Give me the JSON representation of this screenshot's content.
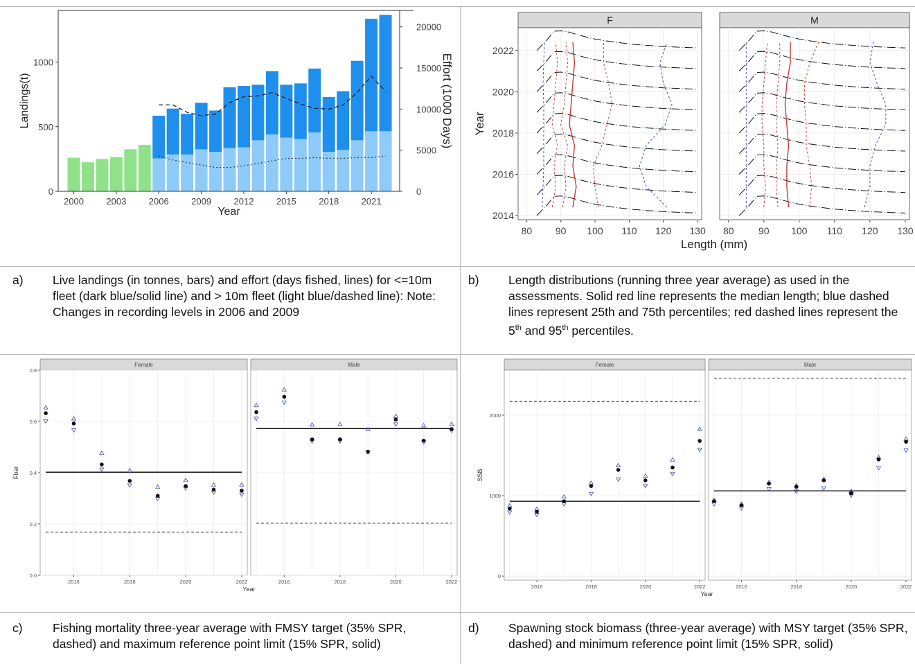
{
  "captions": {
    "a": {
      "label": "a)",
      "text": "Live landings (in tonnes, bars) and effort (days fished, lines) for <=10m fleet (dark blue/solid line) and > 10m fleet (light blue/dashed line): Note: Changes in recording levels in 2006 and 2009"
    },
    "b": {
      "label": "b)",
      "text_main": "Length distributions (running three year average) as used in the assessments. Solid red line represents the median length; blue dashed lines represent 25th and 75th percentiles; red dashed lines represent the 5",
      "sup1": "th",
      "text_mid": " and 95",
      "sup2": "th",
      "text_end": " percentiles."
    },
    "c": {
      "label": "c)",
      "text": "Fishing mortality three-year average with FMSY target (35% SPR, dashed) and maximum reference point limit (15% SPR, solid)"
    },
    "d": {
      "label": "d)",
      "text": "Spawning stock biomass (three-year average) with MSY target (35% SPR, dashed) and minimum reference point limit (15% SPR, solid)"
    }
  },
  "colors": {
    "green": "#90e28a",
    "dark_blue": "#1f8fee",
    "light_blue": "#8fcbf9",
    "red": "#c43a3a",
    "blue_dash": "#3b4fb0",
    "black": "#111111",
    "panel_strip": "#d9d9d9",
    "grid": "#ececec"
  },
  "chart_data": [
    {
      "id": "a",
      "type": "bar",
      "xlabel": "Year",
      "ylabel": "Landings(t)",
      "y2label": "Effort (1000 Days)",
      "ylim": [
        0,
        1400
      ],
      "y2lim": [
        0,
        22000
      ],
      "yticks": [
        0,
        500,
        1000
      ],
      "y2ticks": [
        0,
        5000,
        10000,
        15000,
        20000
      ],
      "xticks": [
        2000,
        2003,
        2006,
        2009,
        2012,
        2015,
        2018,
        2021
      ],
      "grid": false,
      "years": [
        2000,
        2001,
        2002,
        2003,
        2004,
        2005,
        2006,
        2007,
        2008,
        2009,
        2010,
        2011,
        2012,
        2013,
        2014,
        2015,
        2016,
        2017,
        2018,
        2019,
        2020,
        2021,
        2022
      ],
      "series": [
        {
          "values": [
            260,
            225,
            250,
            265,
            325,
            360,
            0,
            0,
            0,
            0,
            0,
            0,
            0,
            0,
            0,
            0,
            0,
            0,
            0,
            0,
            0,
            0,
            0
          ],
          "color": "green"
        },
        {
          "values": [
            0,
            0,
            0,
            0,
            0,
            0,
            255,
            285,
            285,
            325,
            305,
            335,
            340,
            395,
            440,
            415,
            405,
            455,
            305,
            320,
            395,
            465,
            465
          ],
          "color": "light_blue"
        },
        {
          "values": [
            0,
            0,
            0,
            0,
            0,
            0,
            330,
            355,
            315,
            360,
            320,
            470,
            475,
            430,
            490,
            410,
            430,
            495,
            425,
            455,
            615,
            870,
            900
          ],
          "color": "dark_blue"
        }
      ],
      "lines": [
        {
          "style": "dashed",
          "x": [
            2006,
            2007,
            2008,
            2009,
            2010,
            2011,
            2012,
            2013,
            2014,
            2015,
            2016,
            2017,
            2018,
            2019,
            2020,
            2021,
            2022
          ],
          "y": [
            10500,
            10500,
            9600,
            9200,
            9400,
            10800,
            11500,
            11600,
            12000,
            11300,
            10600,
            10100,
            10000,
            10500,
            12000,
            14000,
            12200
          ]
        },
        {
          "style": "dotted",
          "x": [
            2006,
            2007,
            2008,
            2009,
            2010,
            2011,
            2012,
            2013,
            2014,
            2015,
            2016,
            2017,
            2018,
            2019,
            2020,
            2021,
            2022
          ],
          "y": [
            4300,
            3800,
            3500,
            3200,
            2900,
            2900,
            3100,
            3400,
            3700,
            4000,
            4000,
            4100,
            4000,
            4000,
            4100,
            4100,
            4300
          ]
        }
      ]
    },
    {
      "id": "b",
      "type": "line",
      "xlabel": "Length (mm)",
      "ylabel": "Year",
      "xlim": [
        80,
        130
      ],
      "xticks": [
        80,
        90,
        100,
        110,
        120,
        130
      ],
      "ylim": [
        2013.8,
        2023.1
      ],
      "yticks": [
        2014,
        2016,
        2018,
        2020,
        2022
      ],
      "grid": true,
      "years": [
        2014,
        2015,
        2016,
        2017,
        2018,
        2019,
        2020,
        2021,
        2022
      ],
      "panels": [
        {
          "name": "F",
          "distribution": {
            "length": [
              83,
              86,
              88,
              90,
              92,
              94,
              96,
              98,
              100,
              103,
              106,
              110,
              115,
              120,
              125,
              130
            ],
            "value": [
              0,
              0.55,
              0.98,
              1,
              0.95,
              0.85,
              0.75,
              0.66,
              0.58,
              0.49,
              0.42,
              0.33,
              0.26,
              0.2,
              0.16,
              0.13
            ]
          },
          "p5": [
            87.5,
            88.5,
            88.0,
            89.0,
            87.5,
            88.0,
            88.5,
            89.0,
            88.5
          ],
          "p25": [
            90.5,
            91.5,
            91.0,
            92.0,
            90.0,
            91.0,
            91.5,
            92.0,
            91.5
          ],
          "p50": [
            93.5,
            94.5,
            93.5,
            94.0,
            92.5,
            93.0,
            93.5,
            94.0,
            93.5
          ],
          "p75": [
            101.0,
            100.0,
            99.5,
            102.0,
            103.5,
            105.0,
            104.0,
            102.5,
            102.5
          ],
          "p95": [
            121.0,
            115.0,
            113.0,
            115.0,
            120.5,
            122.5,
            120.0,
            119.0,
            121.0
          ],
          "p_low": [
            84.5,
            84.8,
            85.0,
            85.0,
            85.0,
            85.0,
            84.8,
            85.0,
            85.2
          ]
        },
        {
          "name": "M",
          "distribution": {
            "length": [
              83,
              86,
              88,
              90,
              92,
              94,
              96,
              98,
              100,
              103,
              106,
              110,
              115,
              120,
              125,
              130
            ],
            "value": [
              0,
              0.55,
              0.98,
              1,
              0.95,
              0.85,
              0.75,
              0.66,
              0.58,
              0.49,
              0.42,
              0.33,
              0.26,
              0.2,
              0.16,
              0.13
            ]
          },
          "p5": [
            90.0,
            90.5,
            90.0,
            90.0,
            89.5,
            89.5,
            90.0,
            90.5,
            91.0
          ],
          "p25": [
            94.0,
            93.5,
            93.5,
            94.0,
            93.5,
            93.5,
            94.0,
            94.5,
            94.5
          ],
          "p50": [
            97.0,
            96.5,
            96.5,
            97.0,
            96.5,
            96.0,
            96.5,
            97.5,
            97.5
          ],
          "p75": [
            103.0,
            103.5,
            103.0,
            102.0,
            102.0,
            101.5,
            101.5,
            103.0,
            105.5
          ],
          "p95": [
            118.5,
            120.0,
            120.0,
            121.5,
            124.5,
            124.5,
            122.0,
            120.0,
            121.0
          ],
          "p_low": [
            85.0,
            85.0,
            85.0,
            85.0,
            85.0,
            85.0,
            85.0,
            85.0,
            85.0
          ]
        }
      ]
    },
    {
      "id": "c",
      "type": "scatter",
      "xlabel": "Year",
      "ylabel": "Fbar",
      "ylim": [
        0.0,
        0.8
      ],
      "yticks": [
        0.0,
        0.2,
        0.4,
        0.6,
        0.8
      ],
      "xticks": [
        2016,
        2018,
        2020,
        2022
      ],
      "grid": true,
      "panels": [
        {
          "name": "Female",
          "x": [
            2015,
            2016,
            2017,
            2018,
            2019,
            2020,
            2021,
            2022
          ],
          "y": [
            0.632,
            0.592,
            0.432,
            0.368,
            0.31,
            0.348,
            0.334,
            0.33
          ],
          "upper": [
            0.655,
            0.612,
            0.478,
            0.41,
            0.345,
            0.372,
            0.354,
            0.354
          ],
          "lower": [
            0.6,
            0.565,
            0.412,
            0.35,
            0.298,
            0.338,
            0.322,
            0.314
          ],
          "ref_solid": 0.402,
          "ref_dashed": 0.168
        },
        {
          "name": "Male",
          "x": [
            2015,
            2016,
            2017,
            2018,
            2019,
            2020,
            2021,
            2022
          ],
          "y": [
            0.636,
            0.696,
            0.53,
            0.53,
            0.482,
            0.607,
            0.525,
            0.57
          ],
          "upper": [
            0.664,
            0.725,
            0.588,
            0.59,
            0.57,
            0.622,
            0.585,
            0.59
          ],
          "lower": [
            0.61,
            0.673,
            0.522,
            0.522,
            0.478,
            0.588,
            0.518,
            0.563
          ],
          "ref_solid": 0.572,
          "ref_dashed": 0.203
        }
      ]
    },
    {
      "id": "d",
      "type": "scatter",
      "xlabel": "Year",
      "ylabel": "SSB",
      "ylim": [
        -50,
        2560
      ],
      "yticks": [
        0,
        1000,
        2000
      ],
      "xticks": [
        2016,
        2018,
        2020,
        2022
      ],
      "grid": true,
      "panels": [
        {
          "name": "Female",
          "x": [
            2015,
            2016,
            2017,
            2018,
            2019,
            2020,
            2021,
            2022
          ],
          "y": [
            840,
            800,
            930,
            1120,
            1320,
            1190,
            1350,
            1680
          ],
          "upper": [
            880,
            840,
            990,
            1160,
            1380,
            1250,
            1450,
            1830
          ],
          "lower": [
            790,
            760,
            890,
            1020,
            1200,
            1120,
            1270,
            1570
          ],
          "ref_solid": 930,
          "ref_dashed": 2170
        },
        {
          "name": "Male",
          "x": [
            2015,
            2016,
            2017,
            2018,
            2019,
            2020,
            2021,
            2022
          ],
          "y": [
            930,
            880,
            1150,
            1110,
            1190,
            1030,
            1450,
            1670
          ],
          "upper": [
            950,
            900,
            1170,
            1130,
            1210,
            1060,
            1480,
            1710
          ],
          "lower": [
            890,
            840,
            1080,
            1050,
            1090,
            1000,
            1340,
            1560
          ],
          "ref_solid": 1060,
          "ref_dashed": 2460
        }
      ]
    }
  ]
}
